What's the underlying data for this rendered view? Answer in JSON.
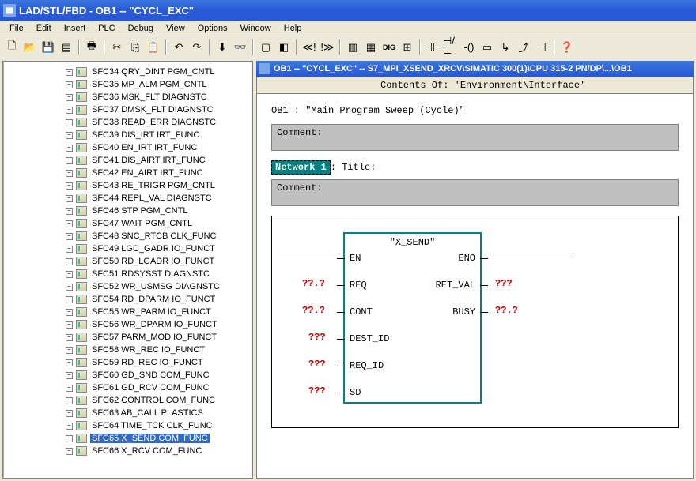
{
  "window": {
    "title": "LAD/STL/FBD  - OB1 -- \"CYCL_EXC\""
  },
  "menu": {
    "items": [
      "File",
      "Edit",
      "Insert",
      "PLC",
      "Debug",
      "View",
      "Options",
      "Window",
      "Help"
    ]
  },
  "tree": {
    "items": [
      {
        "id": "SFC34",
        "label": "SFC34  QRY_DINT  PGM_CNTL"
      },
      {
        "id": "SFC35",
        "label": "SFC35  MP_ALM  PGM_CNTL"
      },
      {
        "id": "SFC36",
        "label": "SFC36  MSK_FLT  DIAGNSTC"
      },
      {
        "id": "SFC37",
        "label": "SFC37  DMSK_FLT  DIAGNSTC"
      },
      {
        "id": "SFC38",
        "label": "SFC38  READ_ERR  DIAGNSTC"
      },
      {
        "id": "SFC39",
        "label": "SFC39  DIS_IRT  IRT_FUNC"
      },
      {
        "id": "SFC40",
        "label": "SFC40  EN_IRT  IRT_FUNC"
      },
      {
        "id": "SFC41",
        "label": "SFC41  DIS_AIRT  IRT_FUNC"
      },
      {
        "id": "SFC42",
        "label": "SFC42  EN_AIRT  IRT_FUNC"
      },
      {
        "id": "SFC43",
        "label": "SFC43  RE_TRIGR  PGM_CNTL"
      },
      {
        "id": "SFC44",
        "label": "SFC44  REPL_VAL  DIAGNSTC"
      },
      {
        "id": "SFC46",
        "label": "SFC46  STP  PGM_CNTL"
      },
      {
        "id": "SFC47",
        "label": "SFC47  WAIT  PGM_CNTL"
      },
      {
        "id": "SFC48",
        "label": "SFC48  SNC_RTCB  CLK_FUNC"
      },
      {
        "id": "SFC49",
        "label": "SFC49  LGC_GADR  IO_FUNCT"
      },
      {
        "id": "SFC50",
        "label": "SFC50  RD_LGADR  IO_FUNCT"
      },
      {
        "id": "SFC51",
        "label": "SFC51  RDSYSST  DIAGNSTC"
      },
      {
        "id": "SFC52",
        "label": "SFC52  WR_USMSG  DIAGNSTC"
      },
      {
        "id": "SFC54",
        "label": "SFC54  RD_DPARM  IO_FUNCT"
      },
      {
        "id": "SFC55",
        "label": "SFC55  WR_PARM  IO_FUNCT"
      },
      {
        "id": "SFC56",
        "label": "SFC56  WR_DPARM  IO_FUNCT"
      },
      {
        "id": "SFC57",
        "label": "SFC57  PARM_MOD  IO_FUNCT"
      },
      {
        "id": "SFC58",
        "label": "SFC58  WR_REC  IO_FUNCT"
      },
      {
        "id": "SFC59",
        "label": "SFC59  RD_REC  IO_FUNCT"
      },
      {
        "id": "SFC60",
        "label": "SFC60  GD_SND  COM_FUNC"
      },
      {
        "id": "SFC61",
        "label": "SFC61  GD_RCV  COM_FUNC"
      },
      {
        "id": "SFC62",
        "label": "SFC62  CONTROL  COM_FUNC"
      },
      {
        "id": "SFC63",
        "label": "SFC63  AB_CALL  PLASTICS"
      },
      {
        "id": "SFC64",
        "label": "SFC64  TIME_TCK  CLK_FUNC"
      },
      {
        "id": "SFC65",
        "label": "SFC65  X_SEND  COM_FUNC",
        "selected": true
      },
      {
        "id": "SFC66",
        "label": "SFC66  X_RCV  COM_FUNC"
      }
    ]
  },
  "document": {
    "title": "OB1 -- \"CYCL_EXC\" -- S7_MPI_XSEND_XRCV\\SIMATIC 300(1)\\CPU 315-2 PN/DP\\...\\OB1",
    "env_label": "Contents Of: 'Environment\\Interface'",
    "ob_label": "OB1 :  \"Main Program Sweep (Cycle)\"",
    "comment_label": "Comment:",
    "network_label": "Network 1",
    "network_title": ": Title:",
    "block": {
      "name": "\"X_SEND\"",
      "left_pins": [
        "EN",
        "REQ",
        "CONT",
        "DEST_ID",
        "REQ_ID",
        "SD"
      ],
      "right_pins": [
        "ENO",
        "RET_VAL",
        "BUSY"
      ],
      "left_vals": [
        "",
        "??.?",
        "??.?",
        "???",
        "???",
        "???"
      ],
      "right_vals": [
        "",
        "???",
        "??.?"
      ]
    }
  },
  "colors": {
    "titlebar": "#2a5bd7",
    "accent": "#008080",
    "error": "#c00000",
    "selection": "#316ac5",
    "panel": "#ece9d8"
  }
}
